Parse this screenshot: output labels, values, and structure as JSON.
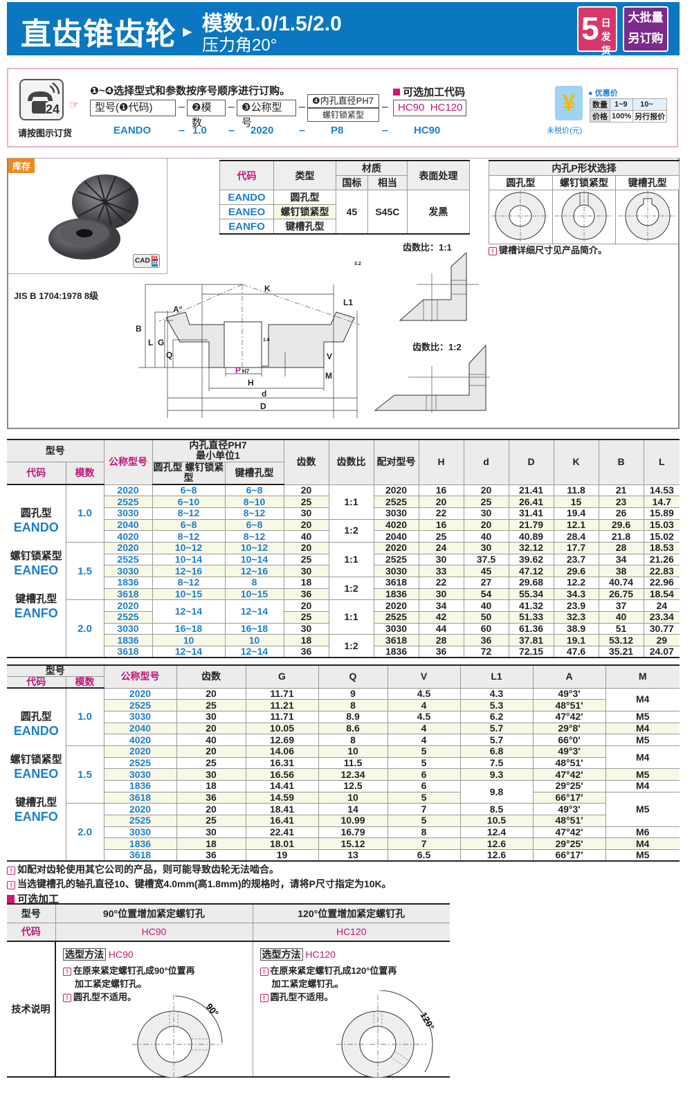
{
  "header": {
    "title": "直齿锥齿轮",
    "arrow": "►",
    "subtitle1": "模数1.0/1.5/2.0",
    "subtitle2": "压力角20°",
    "badge1_big": "5",
    "badge1_small": "日发货",
    "badge2_line1": "大批量",
    "badge2_line2": "另订购",
    "bg": "#0a77c0"
  },
  "order": {
    "phone_caption": "请按图示订货",
    "phone_badge": "24",
    "instruction": "❶~❹选择型式和参数按序号顺序进行订购。",
    "box1": "型号(❶代码)",
    "box2": "❷模数",
    "box3": "❸公称型号",
    "box4_top": "❹内孔直径PH7",
    "box4_bottom": "螺钉锁紧型",
    "optional_title": "可选加工代码",
    "opt1": "HC90",
    "opt2": "HC120",
    "dash": "–",
    "example": [
      "EANDO",
      "1.0",
      "2020",
      "P8",
      "HC90"
    ],
    "price_caption": "未税价(元)",
    "discount_title": "优惠价",
    "discount_table": [
      [
        "数量",
        "1~9",
        "10~"
      ],
      [
        "价格",
        "100%",
        "另行报价"
      ]
    ]
  },
  "stock": {
    "tag": "库存",
    "cad": "CAD",
    "cad_2d": "2D",
    "cad_3d": "3D",
    "standard": "JIS B 1704:1978 8级"
  },
  "material_table": {
    "headers": {
      "code": "代码",
      "type": "类型",
      "material": "材质",
      "gb": "国标",
      "equiv": "相当",
      "surface": "表面处理"
    },
    "rows": [
      {
        "code": "EANDO",
        "type": "圆孔型"
      },
      {
        "code": "EANEO",
        "type": "螺钉锁紧型"
      },
      {
        "code": "EANFO",
        "type": "键槽孔型"
      }
    ],
    "gb": "45",
    "equiv": "S45C",
    "surface": "发黑"
  },
  "bore_select": {
    "title": "内孔P形状选择",
    "types": [
      "圆孔型",
      "螺钉锁紧型",
      "键槽孔型"
    ],
    "note": "键槽详细尺寸见产品简介。"
  },
  "drawing": {
    "ratio11": "齿数比：1:1",
    "ratio12": "齿数比：1:2",
    "labels": {
      "K": "K",
      "B": "B",
      "L": "L",
      "G": "G",
      "Q": "Q",
      "A": "A°",
      "L1": "L1",
      "V": "V",
      "M": "M",
      "P": "P",
      "H7": "H7",
      "H": "H",
      "d": "d",
      "D": "D",
      "rough": "3.2",
      "rough2": "1.6"
    }
  },
  "table1": {
    "headers": {
      "model": "型号",
      "code": "代码",
      "module": "模数",
      "nominal": "公称型号",
      "bore": "内孔直径PH7",
      "bore2": "最小单位1",
      "bore_round": "圆孔型 螺钉锁紧型",
      "bore_key": "键槽孔型",
      "teeth": "齿数",
      "ratio": "齿数比",
      "pair": "配对型号",
      "H": "H",
      "d": "d",
      "D": "D",
      "K": "K",
      "B": "B",
      "L": "L"
    },
    "types": [
      {
        "label": "圆孔型",
        "code": "EANDO"
      },
      {
        "label": "螺钉锁紧型",
        "code": "EANEO"
      },
      {
        "label": "键槽孔型",
        "code": "EANFO"
      }
    ],
    "rows": [
      [
        "1.0",
        "2020",
        "6~8",
        "6~8",
        "20",
        "1:1",
        "2020",
        "16",
        "20",
        "21.41",
        "11.8",
        "21",
        "14.53"
      ],
      [
        null,
        "2525",
        "6~10",
        "8~10",
        "25",
        null,
        "2525",
        "20",
        "25",
        "26.41",
        "15",
        "23",
        "14.7"
      ],
      [
        null,
        "3030",
        "8~12",
        "8~12",
        "30",
        null,
        "3030",
        "22",
        "30",
        "31.41",
        "19.4",
        "26",
        "15.89"
      ],
      [
        null,
        "2040",
        "6~8",
        "6~8",
        "20",
        "1:2",
        "4020",
        "16",
        "20",
        "21.79",
        "12.1",
        "29.6",
        "15.03"
      ],
      [
        null,
        "4020",
        "8~12",
        "8~12",
        "40",
        null,
        "2040",
        "25",
        "40",
        "40.89",
        "28.4",
        "21.8",
        "15.02"
      ],
      [
        "1.5",
        "2020",
        "10~12",
        "10~12",
        "20",
        "1:1",
        "2020",
        "24",
        "30",
        "32.12",
        "17.7",
        "28",
        "18.53"
      ],
      [
        null,
        "2525",
        "10~14",
        "10~14",
        "25",
        null,
        "2525",
        "30",
        "37.5",
        "39.62",
        "23.7",
        "34",
        "21.26"
      ],
      [
        null,
        "3030",
        "12~16",
        "12~16",
        "30",
        null,
        "3030",
        "33",
        "45",
        "47.12",
        "29.6",
        "38",
        "22.83"
      ],
      [
        null,
        "1836",
        "8~12",
        "8",
        "18",
        "1:2",
        "3618",
        "22",
        "27",
        "29.68",
        "12.2",
        "40.74",
        "22.96"
      ],
      [
        null,
        "3618",
        "10~15",
        "10~15",
        "36",
        null,
        "1836",
        "30",
        "54",
        "55.34",
        "34.3",
        "26.75",
        "18.54"
      ],
      [
        "2.0",
        "2020",
        "12~14",
        "12~14",
        "20",
        "1:1",
        "2020",
        "34",
        "40",
        "41.32",
        "23.9",
        "37",
        "24"
      ],
      [
        null,
        "2525",
        null,
        null,
        "25",
        null,
        "2525",
        "42",
        "50",
        "51.33",
        "32.3",
        "40",
        "23.34"
      ],
      [
        null,
        "3030",
        "16~18",
        "16~18",
        "30",
        null,
        "3030",
        "44",
        "60",
        "61.36",
        "38.9",
        "51",
        "30.77"
      ],
      [
        null,
        "1836",
        "10",
        "10",
        "18",
        "1:2",
        "3618",
        "28",
        "36",
        "37.81",
        "19.1",
        "53.12",
        "29"
      ],
      [
        null,
        "3618",
        "12~14",
        "12~14",
        "36",
        null,
        "1836",
        "36",
        "72",
        "72.15",
        "47.6",
        "35.21",
        "24.07"
      ]
    ]
  },
  "table2": {
    "headers": {
      "model": "型号",
      "code": "代码",
      "module": "模数",
      "nominal": "公称型号",
      "teeth": "齿数",
      "G": "G",
      "Q": "Q",
      "V": "V",
      "L1": "L1",
      "A": "A",
      "M": "M"
    },
    "rows": [
      [
        "1.0",
        "2020",
        "20",
        "11.71",
        "9",
        "4.5",
        "4.3",
        "49°3'",
        "M4"
      ],
      [
        null,
        "2525",
        "25",
        "11.21",
        "8",
        "4",
        "5.3",
        "48°51'",
        null
      ],
      [
        null,
        "3030",
        "30",
        "11.71",
        "8.9",
        "4.5",
        "6.2",
        "47°42'",
        "M5"
      ],
      [
        null,
        "2040",
        "20",
        "10.05",
        "8.6",
        "4",
        "5.7",
        "29°8'",
        "M4"
      ],
      [
        null,
        "4020",
        "40",
        "12.69",
        "8",
        "4",
        "5.7",
        "66°0'",
        "M5"
      ],
      [
        "1.5",
        "2020",
        "20",
        "14.06",
        "10",
        "5",
        "6.8",
        "49°3'",
        "M4"
      ],
      [
        null,
        "2525",
        "25",
        "16.31",
        "11.5",
        "5",
        "7.5",
        "48°51'",
        null
      ],
      [
        null,
        "3030",
        "30",
        "16.56",
        "12.34",
        "6",
        "9.3",
        "47°42'",
        "M5"
      ],
      [
        null,
        "1836",
        "18",
        "14.41",
        "12.5",
        "6",
        "9.8",
        "29°25'",
        "M4"
      ],
      [
        null,
        "3618",
        "36",
        "14.59",
        "10",
        "5",
        null,
        "66°17'",
        "M5"
      ],
      [
        "2.0",
        "2020",
        "20",
        "18.41",
        "14",
        "7",
        "8.5",
        "49°3'",
        null
      ],
      [
        null,
        "2525",
        "25",
        "16.41",
        "10.99",
        "5",
        "10.5",
        "48°51'",
        null
      ],
      [
        null,
        "3030",
        "30",
        "22.41",
        "16.79",
        "8",
        "12.4",
        "47°42'",
        "M6"
      ],
      [
        null,
        "1836",
        "18",
        "18.01",
        "15.12",
        "7",
        "12.6",
        "29°25'",
        "M4"
      ],
      [
        null,
        "3618",
        "36",
        "19",
        "13",
        "6.5",
        "12.6",
        "66°17'",
        "M5"
      ]
    ]
  },
  "notes": [
    "如配对齿轮使用其它公司的产品，则可能导致齿轮无法啮合。",
    "当选键槽孔的轴孔直径10、键槽宽4.0mm(高1.8mm)的规格时，请将P尺寸指定为10K。"
  ],
  "optional": {
    "title": "可选加工",
    "model_label": "型号",
    "code_label": "代码",
    "tech_label": "技术说明",
    "items": [
      {
        "name": "90°位置增加紧定螺钉孔",
        "code": "HC90",
        "method": "选型方法",
        "line1": "在原来紧定螺钉孔成90°位置再",
        "line2": "加工紧定螺钉孔。",
        "line3": "圆孔型不适用。",
        "angle": "90°"
      },
      {
        "name": "120°位置增加紧定螺钉孔",
        "code": "HC120",
        "method": "选型方法",
        "line1": "在原来紧定螺钉孔成120°位置再",
        "line2": "加工紧定螺钉孔。",
        "line3": "圆孔型不适用。",
        "angle": "120°"
      }
    ]
  }
}
